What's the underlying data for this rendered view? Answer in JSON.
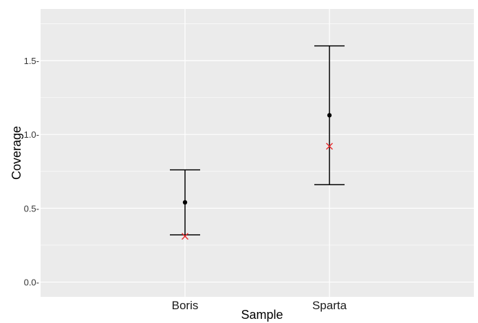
{
  "chart_data": {
    "type": "scatter",
    "xlabel": "Sample",
    "ylabel": "Coverage",
    "categories": [
      "Boris",
      "Sparta"
    ],
    "ylim": [
      -0.1,
      1.85
    ],
    "yticks": [
      0.0,
      0.5,
      1.0,
      1.5
    ],
    "ytick_labels": [
      "0.0-",
      "0.5-",
      "1.0-",
      "1.5-"
    ],
    "grid": true,
    "legend": "none",
    "series": [
      {
        "marker": "dot",
        "color": "#000000",
        "values": [
          0.54,
          1.13
        ],
        "error_low": [
          0.32,
          0.66
        ],
        "error_high": [
          0.76,
          1.6
        ]
      },
      {
        "marker": "cross",
        "color": "#e8282b",
        "values": [
          0.31,
          0.92
        ]
      }
    ],
    "colors": {
      "panel": "#ebebeb",
      "grid": "#ffffff",
      "errorbar": "#000000"
    }
  }
}
